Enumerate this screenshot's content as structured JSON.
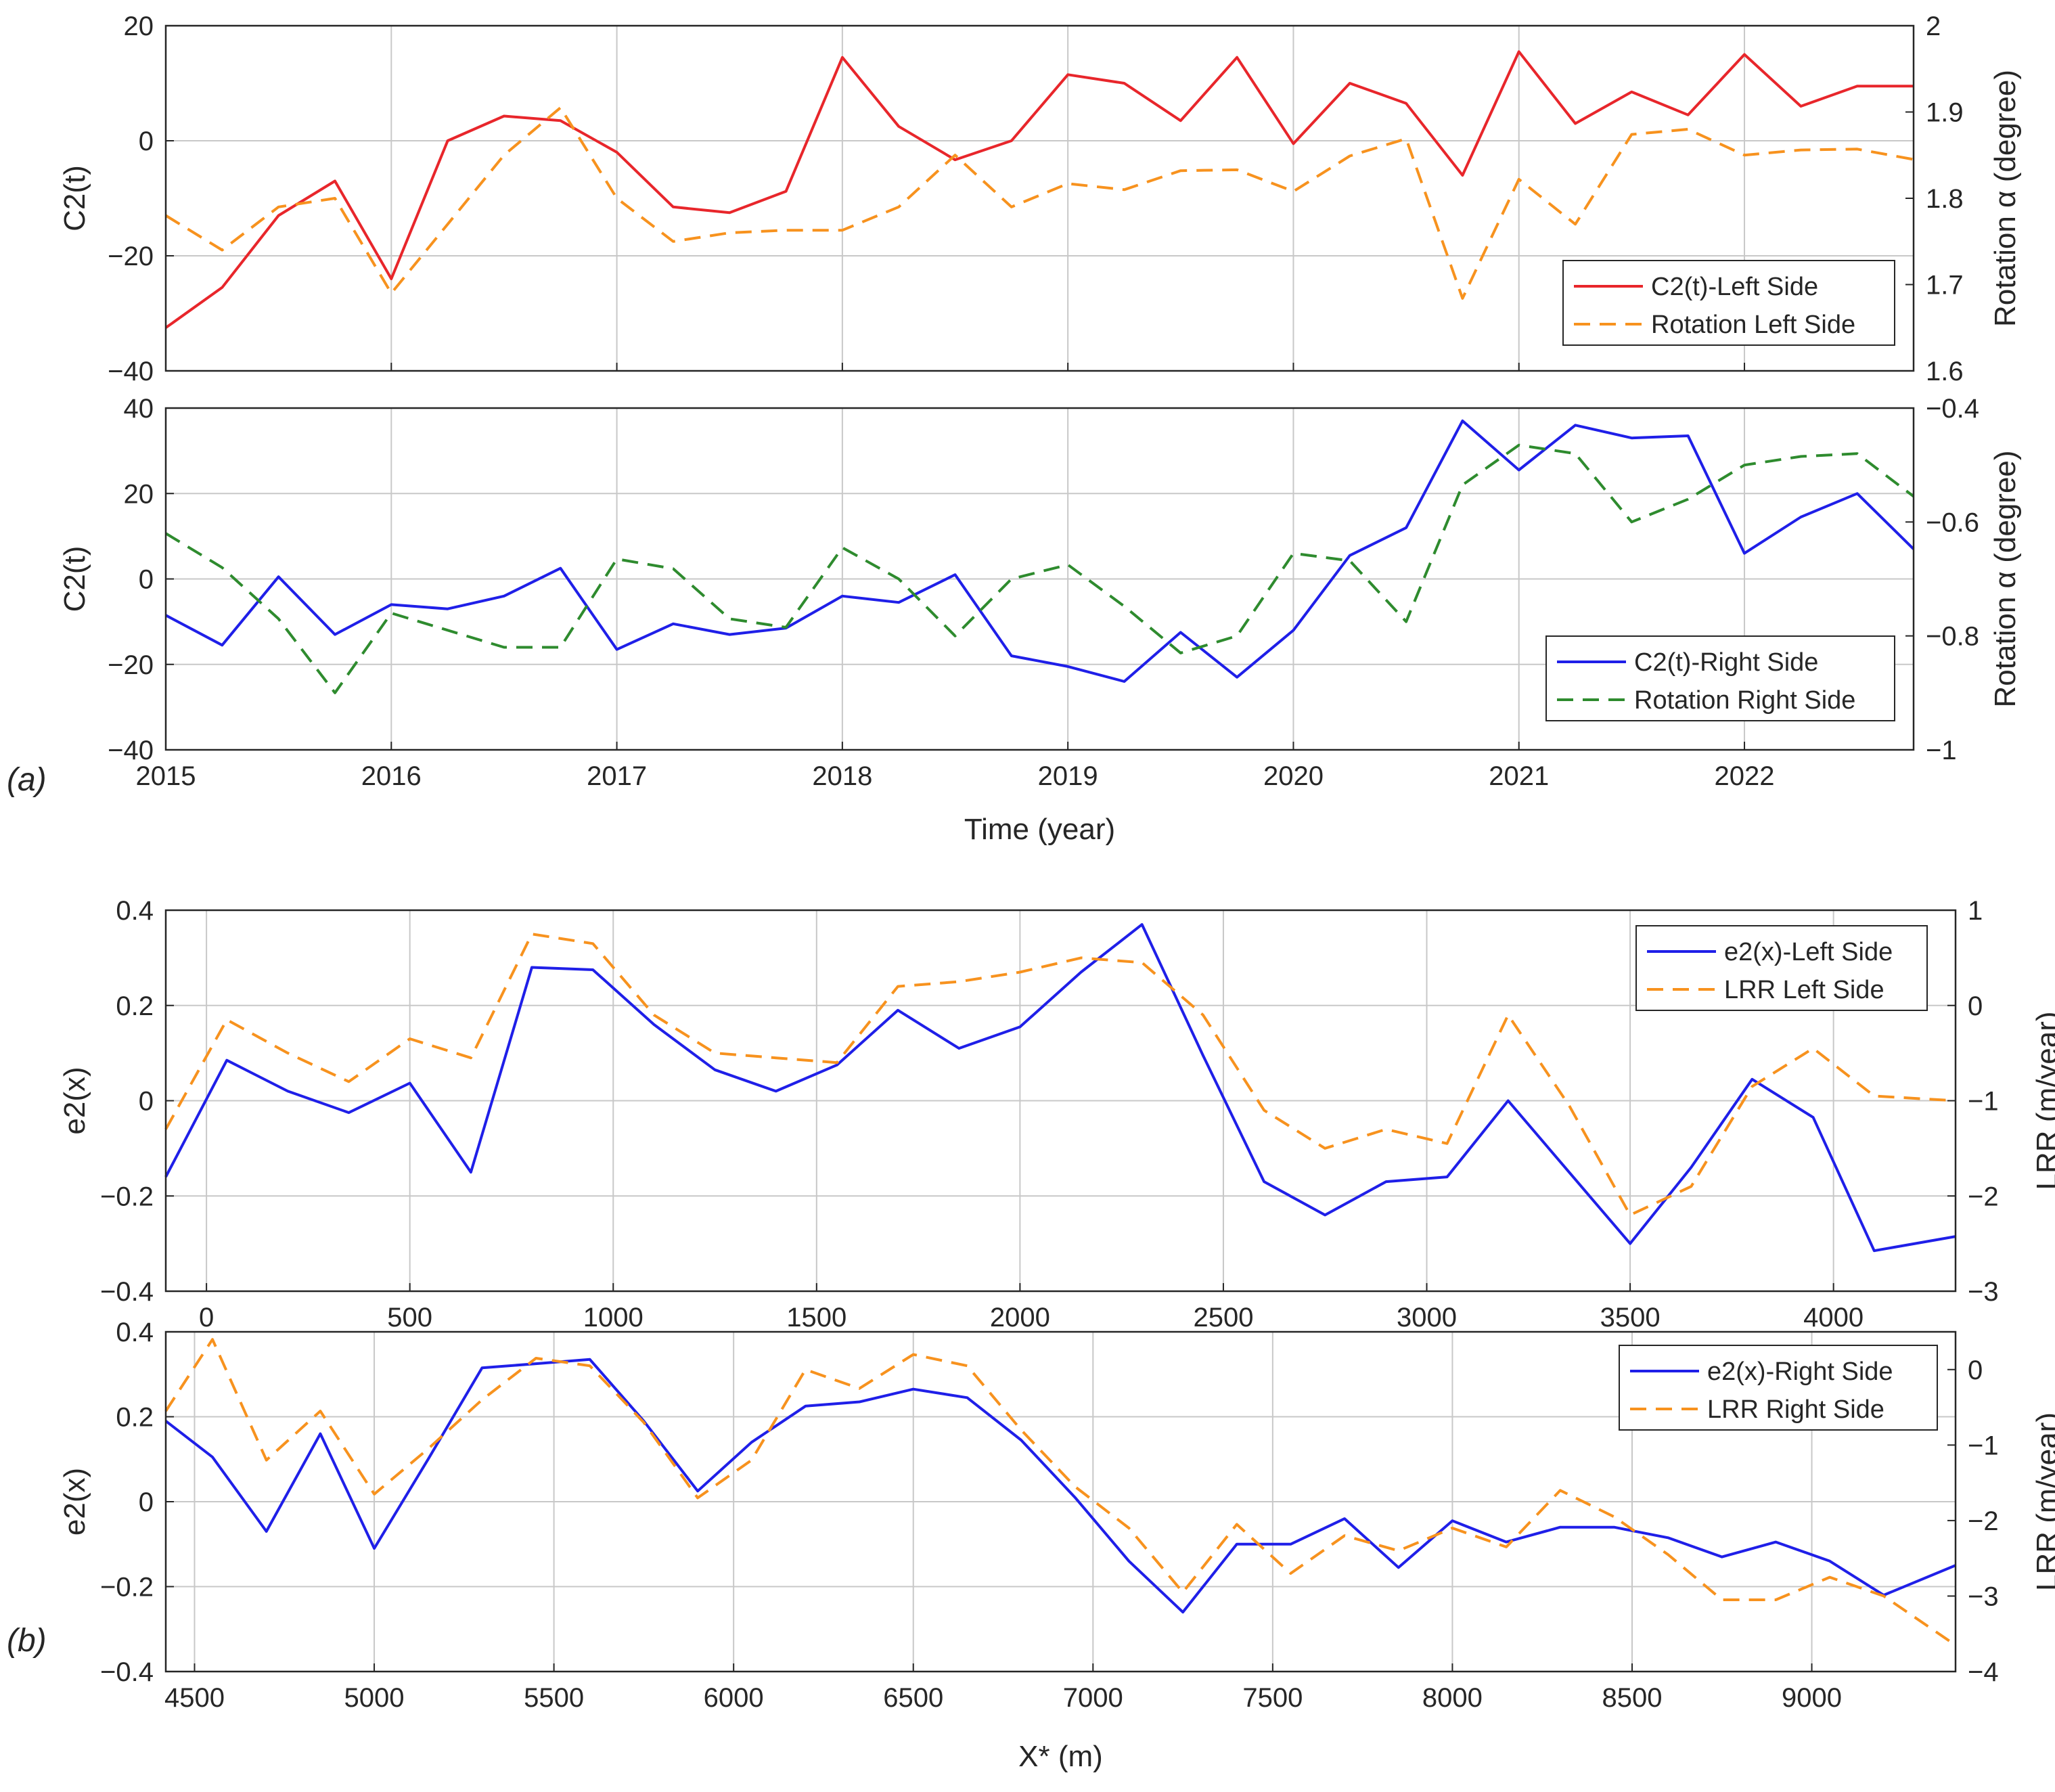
{
  "panel_labels": {
    "a": "(a)",
    "b": "(b)"
  },
  "colors": {
    "red": "#e8262b",
    "orange": "#f7921e",
    "blue": "#1f1fe8",
    "green": "#2e8b2e"
  },
  "chart_data": [
    {
      "type": "line",
      "panel": "a-top",
      "x_label": "Time (year)",
      "x_ticks": [
        2015,
        2016,
        2017,
        2018,
        2019,
        2020,
        2021,
        2022
      ],
      "xlim": [
        2015,
        2022.75
      ],
      "left_axis": {
        "label": "C2(t)",
        "ylim": [
          -40,
          20
        ],
        "ticks": [
          -40,
          -20,
          0,
          20
        ]
      },
      "right_axis": {
        "label": "Rotation α (degree)",
        "ylim": [
          1.6,
          2.0
        ],
        "ticks": [
          1.6,
          1.7,
          1.8,
          1.9,
          2.0
        ]
      },
      "legend_position": "bottom-right",
      "series": [
        {
          "name": "C2(t)-Left Side",
          "axis": "left",
          "style": "solid",
          "color": "#e8262b",
          "x": [
            2015,
            2015.25,
            2015.5,
            2015.75,
            2016,
            2016.25,
            2016.5,
            2016.75,
            2017,
            2017.25,
            2017.5,
            2017.75,
            2018,
            2018.25,
            2018.5,
            2018.75,
            2019,
            2019.25,
            2019.5,
            2019.75,
            2020,
            2020.25,
            2020.5,
            2020.75,
            2021,
            2021.25,
            2021.5,
            2021.75,
            2022,
            2022.25,
            2022.5,
            2022.75
          ],
          "values": [
            -32.5,
            -25.5,
            -13,
            -7,
            -24,
            0,
            4.3,
            3.5,
            -2,
            -11.5,
            -12.5,
            -8.8,
            14.5,
            2.5,
            -3.3,
            0,
            11.5,
            10,
            3.5,
            14.5,
            -0.5,
            10,
            6.5,
            -6,
            15.5,
            3,
            8.5,
            4.5,
            15,
            6,
            9.5,
            9.5
          ]
        },
        {
          "name": "Rotation Left Side",
          "axis": "right",
          "style": "dashed",
          "color": "#f7921e",
          "x": [
            2015,
            2015.25,
            2015.5,
            2015.75,
            2016,
            2016.25,
            2016.5,
            2016.75,
            2017,
            2017.25,
            2017.5,
            2017.75,
            2018,
            2018.25,
            2018.5,
            2018.75,
            2019,
            2019.25,
            2019.5,
            2019.75,
            2020,
            2020.25,
            2020.5,
            2020.75,
            2021,
            2021.25,
            2021.5,
            2021.75,
            2022,
            2022.25,
            2022.5,
            2022.75
          ],
          "values": [
            1.78,
            1.74,
            1.79,
            1.8,
            1.69,
            1.77,
            1.85,
            1.905,
            1.8,
            1.75,
            1.76,
            1.763,
            1.763,
            1.79,
            1.85,
            1.79,
            1.817,
            1.81,
            1.832,
            1.833,
            1.808,
            1.849,
            1.869,
            1.684,
            1.822,
            1.77,
            1.874,
            1.88,
            1.85,
            1.856,
            1.857,
            1.845
          ]
        }
      ]
    },
    {
      "type": "line",
      "panel": "a-bottom",
      "x_label": "Time (year)",
      "x_ticks": [
        2015,
        2016,
        2017,
        2018,
        2019,
        2020,
        2021,
        2022
      ],
      "xlim": [
        2015,
        2022.75
      ],
      "left_axis": {
        "label": "C2(t)",
        "ylim": [
          -40,
          40
        ],
        "ticks": [
          -40,
          -20,
          0,
          20,
          40
        ]
      },
      "right_axis": {
        "label": "Rotation α (degree)",
        "ylim": [
          -1.0,
          -0.4
        ],
        "ticks": [
          -1,
          -0.8,
          -0.6,
          -0.4
        ]
      },
      "legend_position": "bottom-right",
      "series": [
        {
          "name": "C2(t)-Right Side",
          "axis": "left",
          "style": "solid",
          "color": "#1f1fe8",
          "x": [
            2015,
            2015.25,
            2015.5,
            2015.75,
            2016,
            2016.25,
            2016.5,
            2016.75,
            2017,
            2017.25,
            2017.5,
            2017.75,
            2018,
            2018.25,
            2018.5,
            2018.75,
            2019,
            2019.25,
            2019.5,
            2019.75,
            2020,
            2020.25,
            2020.5,
            2020.75,
            2021,
            2021.25,
            2021.5,
            2021.75,
            2022,
            2022.25,
            2022.5,
            2022.75
          ],
          "values": [
            -8.5,
            -15.5,
            0.5,
            -13,
            -6,
            -7,
            -4,
            2.5,
            -16.5,
            -10.5,
            -13,
            -11.5,
            -4,
            -5.5,
            1,
            -18,
            -20.5,
            -24,
            -12.5,
            -23,
            -12,
            5.5,
            12,
            37,
            25.5,
            36,
            33,
            33.5,
            6,
            14.5,
            20,
            7
          ]
        },
        {
          "name": "Rotation Right Side",
          "axis": "right",
          "style": "dashed",
          "color": "#2e8b2e",
          "x": [
            2015,
            2015.25,
            2015.5,
            2015.75,
            2016,
            2016.25,
            2016.5,
            2016.75,
            2017,
            2017.25,
            2017.5,
            2017.75,
            2018,
            2018.25,
            2018.5,
            2018.75,
            2019,
            2019.25,
            2019.5,
            2019.75,
            2020,
            2020.25,
            2020.5,
            2020.75,
            2021,
            2021.25,
            2021.5,
            2021.75,
            2022,
            2022.25,
            2022.5,
            2022.75
          ],
          "values": [
            -0.62,
            -0.68,
            -0.77,
            -0.9,
            -0.76,
            -0.79,
            -0.82,
            -0.82,
            -0.665,
            -0.682,
            -0.77,
            -0.785,
            -0.645,
            -0.7,
            -0.8,
            -0.7,
            -0.675,
            -0.748,
            -0.83,
            -0.8,
            -0.655,
            -0.668,
            -0.775,
            -0.535,
            -0.465,
            -0.48,
            -0.6,
            -0.56,
            -0.5,
            -0.485,
            -0.48,
            -0.555
          ]
        }
      ]
    },
    {
      "type": "line",
      "panel": "b-top",
      "x_label": "",
      "x_ticks": [
        0,
        500,
        1000,
        1500,
        2000,
        2500,
        3000,
        3500,
        4000
      ],
      "xlim": [
        -100,
        4300
      ],
      "left_axis": {
        "label": "e2(x)",
        "ylim": [
          -0.4,
          0.4
        ],
        "ticks": [
          -0.4,
          -0.2,
          0,
          0.2,
          0.4
        ]
      },
      "right_axis": {
        "label": "LRR (m/year)",
        "ylim": [
          -3,
          1
        ],
        "ticks": [
          -3,
          -2,
          -1,
          0,
          1
        ]
      },
      "legend_position": "top-right",
      "series": [
        {
          "name": "e2(x)-Left Side",
          "axis": "left",
          "style": "solid",
          "color": "#1f1fe8",
          "x": [
            -100,
            50,
            200,
            350,
            500,
            650,
            800,
            950,
            1100,
            1250,
            1400,
            1550,
            1700,
            1850,
            2000,
            2150,
            2300,
            2450,
            2600,
            2750,
            2900,
            3050,
            3200,
            3350,
            3500,
            3650,
            3800,
            3950,
            4100,
            4300
          ],
          "values": [
            -0.16,
            0.085,
            0.02,
            -0.025,
            0.037,
            -0.15,
            0.28,
            0.275,
            0.16,
            0.065,
            0.02,
            0.075,
            0.19,
            0.11,
            0.155,
            0.27,
            0.37,
            0.095,
            -0.17,
            -0.24,
            -0.17,
            -0.16,
            0.0,
            -0.15,
            -0.3,
            -0.14,
            0.045,
            -0.035,
            -0.315,
            -0.285
          ]
        },
        {
          "name": "LRR Left Side",
          "axis": "right",
          "style": "dashed",
          "color": "#f7921e",
          "x": [
            -100,
            50,
            200,
            350,
            500,
            650,
            800,
            950,
            1100,
            1250,
            1400,
            1550,
            1700,
            1850,
            2000,
            2150,
            2300,
            2450,
            2600,
            2750,
            2900,
            3050,
            3200,
            3350,
            3500,
            3650,
            3800,
            3950,
            4100,
            4300
          ],
          "values": [
            -1.3,
            -0.15,
            -0.5,
            -0.8,
            -0.35,
            -0.55,
            0.75,
            0.65,
            -0.1,
            -0.5,
            -0.55,
            -0.6,
            0.2,
            0.25,
            0.35,
            0.5,
            0.45,
            -0.1,
            -1.1,
            -1.5,
            -1.3,
            -1.45,
            -0.1,
            -1.05,
            -2.2,
            -1.9,
            -0.85,
            -0.45,
            -0.95,
            -1.0
          ]
        }
      ]
    },
    {
      "type": "line",
      "panel": "b-bottom",
      "x_label": "X* (m)",
      "x_ticks": [
        4500,
        5000,
        5500,
        6000,
        6500,
        7000,
        7500,
        8000,
        8500,
        9000
      ],
      "xlim": [
        4420,
        9400
      ],
      "left_axis": {
        "label": "e2(x)",
        "ylim": [
          -0.4,
          0.4
        ],
        "ticks": [
          -0.4,
          -0.2,
          0,
          0.2,
          0.4
        ]
      },
      "right_axis": {
        "label": "LRR (m/year)",
        "ylim": [
          -4,
          0.5
        ],
        "ticks": [
          -4,
          -3,
          -2,
          -1,
          0
        ]
      },
      "legend_position": "top-right",
      "series": [
        {
          "name": "e2(x)-Right Side",
          "axis": "left",
          "style": "solid",
          "color": "#1f1fe8",
          "x": [
            4420,
            4550,
            4700,
            4850,
            5000,
            5150,
            5300,
            5450,
            5600,
            5750,
            5900,
            6050,
            6200,
            6350,
            6500,
            6650,
            6800,
            6950,
            7100,
            7250,
            7400,
            7550,
            7700,
            7850,
            8000,
            8150,
            8300,
            8450,
            8600,
            8750,
            8900,
            9050,
            9200,
            9400
          ],
          "values": [
            0.19,
            0.105,
            -0.07,
            0.16,
            -0.11,
            0.1,
            0.315,
            0.325,
            0.335,
            0.19,
            0.025,
            0.14,
            0.225,
            0.235,
            0.265,
            0.245,
            0.145,
            0.01,
            -0.14,
            -0.26,
            -0.1,
            -0.1,
            -0.04,
            -0.155,
            -0.045,
            -0.095,
            -0.06,
            -0.06,
            -0.085,
            -0.13,
            -0.095,
            -0.14,
            -0.22,
            -0.15
          ]
        },
        {
          "name": "LRR Right Side",
          "axis": "right",
          "style": "dashed",
          "color": "#f7921e",
          "x": [
            4420,
            4550,
            4700,
            4850,
            5000,
            5150,
            5300,
            5450,
            5600,
            5750,
            5900,
            6050,
            6200,
            6350,
            6500,
            6650,
            6800,
            6950,
            7100,
            7250,
            7400,
            7550,
            7700,
            7850,
            8000,
            8150,
            8300,
            8450,
            8600,
            8750,
            8900,
            9050,
            9200,
            9400
          ],
          "values": [
            -0.55,
            0.4,
            -1.2,
            -0.55,
            -1.65,
            -1.05,
            -0.4,
            0.15,
            0.05,
            -0.7,
            -1.7,
            -1.2,
            0.0,
            -0.25,
            0.2,
            0.05,
            -0.8,
            -1.55,
            -2.1,
            -2.95,
            -2.05,
            -2.7,
            -2.2,
            -2.4,
            -2.1,
            -2.35,
            -1.6,
            -1.95,
            -2.45,
            -3.05,
            -3.05,
            -2.75,
            -3.0,
            -3.65
          ]
        }
      ]
    }
  ]
}
